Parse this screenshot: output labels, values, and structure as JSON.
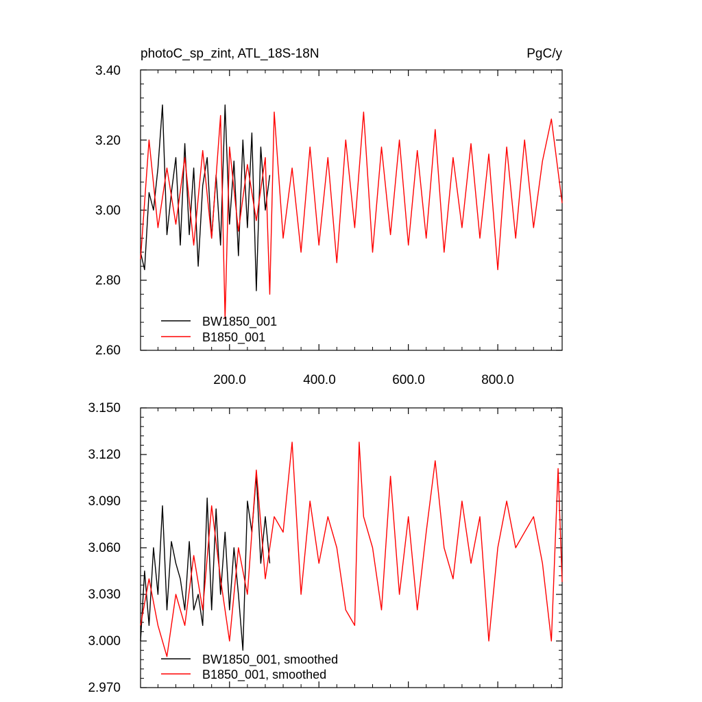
{
  "chart_data": [
    {
      "type": "line",
      "title": "photoC_sp_zint, ATL_18S-18N",
      "units": "PgC/y",
      "xlim": [
        1,
        944
      ],
      "ylim": [
        2.6,
        3.4
      ],
      "xticks": [
        200,
        400,
        600,
        800
      ],
      "xtick_labels": [
        "200.0",
        "400.0",
        "600.0",
        "800.0"
      ],
      "yticks": [
        2.6,
        2.8,
        3.0,
        3.2,
        3.4
      ],
      "ytick_labels": [
        "2.60",
        "2.80",
        "3.00",
        "3.20",
        "3.40"
      ],
      "legend_position": "bottom-left",
      "series": [
        {
          "name": "BW1850_001",
          "color": "#000000",
          "x": [
            1,
            10,
            20,
            30,
            40,
            50,
            60,
            70,
            80,
            90,
            100,
            110,
            120,
            130,
            140,
            150,
            160,
            170,
            180,
            190,
            200,
            210,
            220,
            230,
            240,
            250,
            260,
            270,
            280,
            290
          ],
          "values": [
            2.88,
            2.83,
            3.05,
            3.0,
            3.12,
            3.3,
            2.93,
            3.05,
            3.15,
            2.9,
            3.19,
            2.93,
            3.12,
            2.84,
            3.07,
            3.15,
            2.92,
            3.1,
            2.9,
            3.3,
            2.96,
            3.14,
            2.87,
            3.2,
            2.95,
            3.22,
            2.77,
            3.18,
            3.0,
            3.1
          ]
        },
        {
          "name": "B1850_001",
          "color": "#ff0000",
          "x": [
            1,
            20,
            40,
            60,
            80,
            100,
            120,
            140,
            160,
            180,
            190,
            200,
            220,
            240,
            260,
            280,
            290,
            300,
            320,
            340,
            360,
            380,
            400,
            420,
            440,
            460,
            480,
            500,
            520,
            540,
            560,
            580,
            600,
            620,
            640,
            660,
            680,
            700,
            720,
            740,
            760,
            780,
            800,
            820,
            840,
            860,
            880,
            900,
            920,
            944
          ],
          "values": [
            2.86,
            3.2,
            2.95,
            3.12,
            2.96,
            3.15,
            2.9,
            3.17,
            2.92,
            3.27,
            2.69,
            3.18,
            2.94,
            3.13,
            2.97,
            3.15,
            2.76,
            3.28,
            2.92,
            3.12,
            2.88,
            3.18,
            2.9,
            3.15,
            2.85,
            3.2,
            2.95,
            3.28,
            2.88,
            3.18,
            2.93,
            3.2,
            2.9,
            3.17,
            2.92,
            3.23,
            2.88,
            3.15,
            2.95,
            3.19,
            2.92,
            3.16,
            2.83,
            3.18,
            2.92,
            3.2,
            2.95,
            3.14,
            3.26,
            3.02
          ]
        }
      ]
    },
    {
      "type": "line",
      "xlim": [
        1,
        944
      ],
      "ylim": [
        2.97,
        3.15
      ],
      "yticks": [
        2.97,
        3.0,
        3.03,
        3.06,
        3.09,
        3.12,
        3.15
      ],
      "ytick_labels": [
        "2.970",
        "3.000",
        "3.030",
        "3.060",
        "3.090",
        "3.120",
        "3.150"
      ],
      "xticks": [
        200,
        400,
        600,
        800
      ],
      "legend_position": "bottom-left",
      "series": [
        {
          "name": "BW1850_001, smoothed",
          "color": "#000000",
          "x": [
            1,
            10,
            20,
            30,
            40,
            50,
            60,
            70,
            80,
            90,
            100,
            110,
            120,
            130,
            140,
            150,
            160,
            170,
            180,
            190,
            200,
            210,
            220,
            230,
            240,
            250,
            260,
            270,
            280,
            290
          ],
          "values": [
            3.0,
            3.045,
            3.01,
            3.06,
            3.03,
            3.087,
            3.02,
            3.064,
            3.05,
            3.04,
            3.02,
            3.064,
            3.02,
            3.03,
            3.01,
            3.092,
            3.02,
            3.085,
            3.03,
            3.07,
            3.02,
            3.06,
            3.03,
            2.994,
            3.09,
            3.07,
            3.107,
            3.05,
            3.08,
            3.05
          ]
        },
        {
          "name": "B1850_001, smoothed",
          "color": "#ff0000",
          "x": [
            1,
            20,
            40,
            60,
            80,
            100,
            120,
            140,
            160,
            180,
            200,
            220,
            240,
            260,
            280,
            300,
            320,
            340,
            360,
            380,
            400,
            420,
            440,
            460,
            480,
            490,
            500,
            520,
            540,
            560,
            580,
            600,
            620,
            640,
            660,
            680,
            700,
            720,
            740,
            760,
            780,
            800,
            820,
            840,
            860,
            880,
            900,
            920,
            935,
            944
          ],
          "values": [
            3.01,
            3.04,
            3.01,
            2.99,
            3.03,
            3.01,
            3.055,
            3.02,
            3.087,
            3.04,
            3.0,
            3.06,
            3.03,
            3.11,
            3.04,
            3.08,
            3.07,
            3.128,
            3.03,
            3.09,
            3.05,
            3.08,
            3.06,
            3.02,
            3.01,
            3.128,
            3.08,
            3.06,
            3.02,
            3.106,
            3.03,
            3.08,
            3.02,
            3.07,
            3.116,
            3.06,
            3.04,
            3.09,
            3.05,
            3.08,
            3.0,
            3.06,
            3.09,
            3.06,
            3.07,
            3.08,
            3.05,
            3.0,
            3.111,
            3.038
          ]
        }
      ]
    }
  ]
}
